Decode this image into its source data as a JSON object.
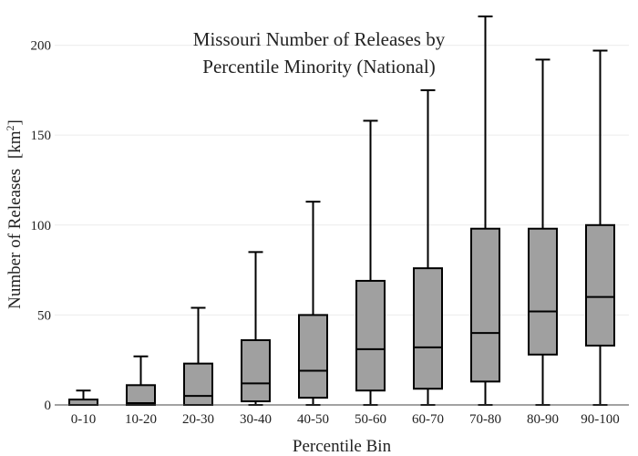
{
  "chart_data": {
    "type": "box",
    "title_lines": [
      "Missouri Number of Releases by",
      "Percentile Minority (National)"
    ],
    "xlabel": "Percentile Bin",
    "ylabel": "Number of Releases",
    "ylabel_unit_base": "[km",
    "ylabel_unit_sup": "2",
    "ylabel_unit_end": "]",
    "ylim": [
      0,
      215
    ],
    "yticks": [
      0,
      50,
      100,
      150,
      200
    ],
    "ytick_labels": [
      "0",
      "50",
      "100",
      "150",
      "200"
    ],
    "grid": true,
    "box_color": "#a0a0a0",
    "line_color": "#000000",
    "categories": [
      "0-10",
      "10-20",
      "20-30",
      "30-40",
      "40-50",
      "50-60",
      "60-70",
      "70-80",
      "80-90",
      "90-100"
    ],
    "boxes": [
      {
        "min": 0,
        "q1": 0,
        "median": 0,
        "q3": 3,
        "max": 8
      },
      {
        "min": 0,
        "q1": 0,
        "median": 1,
        "q3": 11,
        "max": 27
      },
      {
        "min": 0,
        "q1": 0,
        "median": 5,
        "q3": 23,
        "max": 54
      },
      {
        "min": 0,
        "q1": 2,
        "median": 12,
        "q3": 36,
        "max": 85
      },
      {
        "min": 0,
        "q1": 4,
        "median": 19,
        "q3": 50,
        "max": 113
      },
      {
        "min": 0,
        "q1": 8,
        "median": 31,
        "q3": 69,
        "max": 158
      },
      {
        "min": 0,
        "q1": 9,
        "median": 32,
        "q3": 76,
        "max": 175
      },
      {
        "min": 0,
        "q1": 13,
        "median": 40,
        "q3": 98,
        "max": 216
      },
      {
        "min": 0,
        "q1": 28,
        "median": 52,
        "q3": 98,
        "max": 192
      },
      {
        "min": 0,
        "q1": 33,
        "median": 60,
        "q3": 100,
        "max": 197
      }
    ]
  }
}
